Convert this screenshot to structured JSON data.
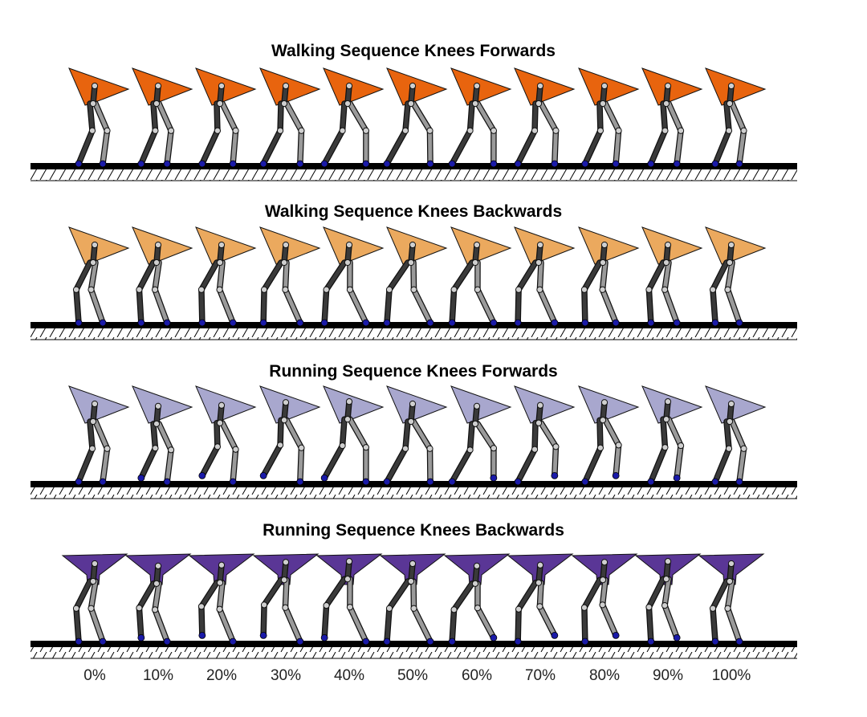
{
  "rows": [
    {
      "title": "Walking Sequence Knees Forwards",
      "body_color": "#E8640E",
      "knees": "forwards",
      "gait": "walking",
      "body": "wedge"
    },
    {
      "title": "Walking Sequence Knees Backwards",
      "body_color": "#EBA95E",
      "knees": "backwards",
      "gait": "walking",
      "body": "wedge"
    },
    {
      "title": "Running Sequence Knees Forwards",
      "body_color": "#A8A7CE",
      "knees": "forwards",
      "gait": "running",
      "body": "wedge"
    },
    {
      "title": "Running Sequence Knees Backwards",
      "body_color": "#5A3696",
      "knees": "backwards",
      "gait": "running",
      "body": "funnel"
    }
  ],
  "phase_labels": [
    "0%",
    "10%",
    "20%",
    "30%",
    "40%",
    "50%",
    "60%",
    "70%",
    "80%",
    "90%",
    "100%"
  ],
  "colors": {
    "leg_dark": "#3a3a3a",
    "leg_light": "#9a9a9a",
    "foot": "#1a1aa8",
    "ground": "#000000"
  }
}
